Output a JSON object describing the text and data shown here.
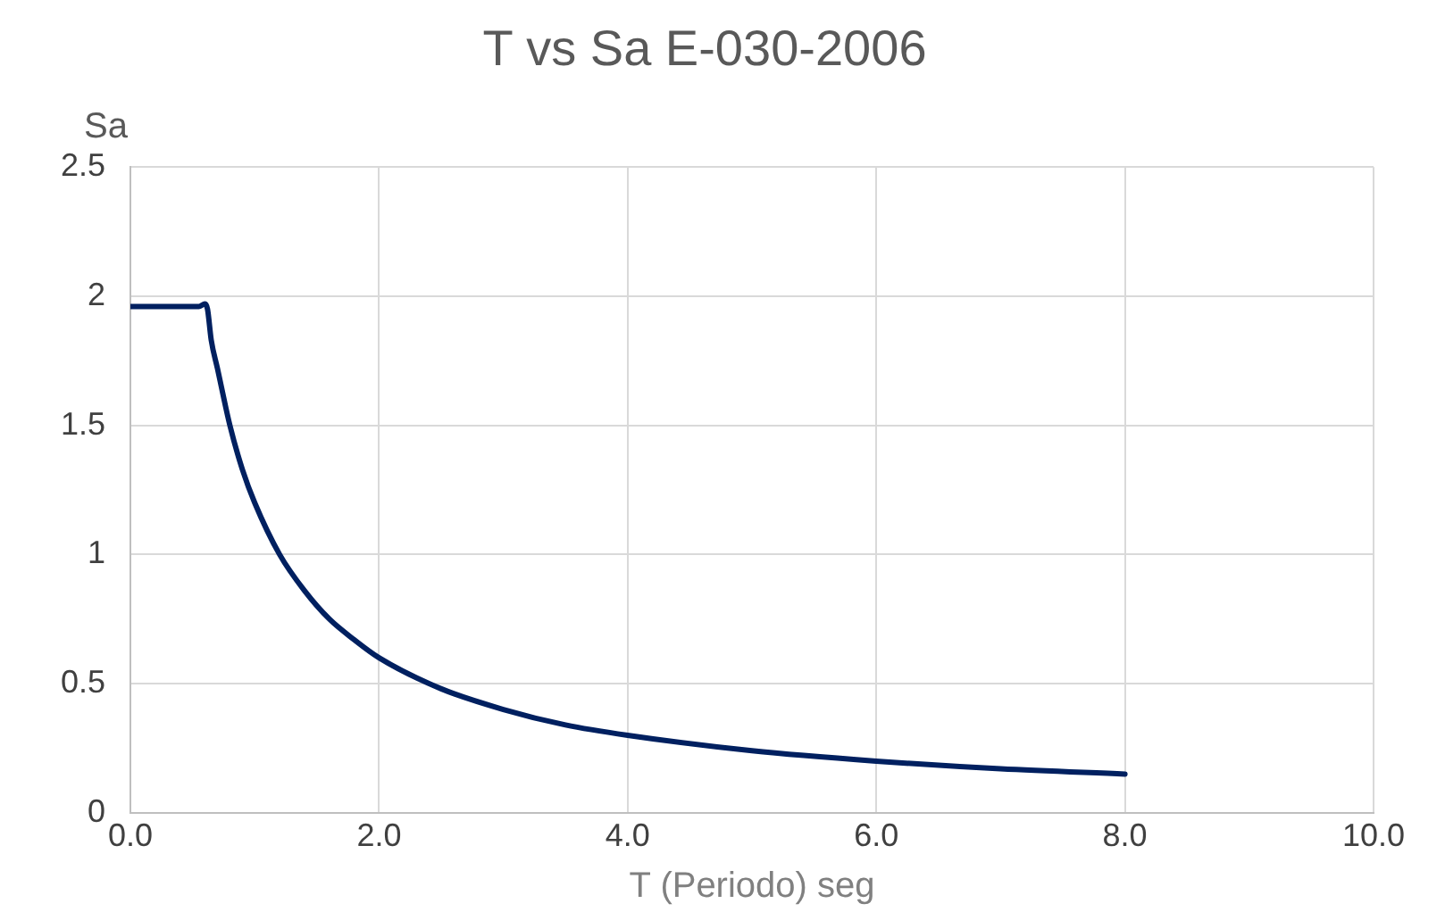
{
  "chart_data": {
    "type": "line",
    "title": "T vs Sa E-030-2006",
    "xlabel": "T (Periodo) seg",
    "ylabel": "Sa",
    "xlim": [
      0,
      10
    ],
    "xticks": [
      {
        "value": 0,
        "label": "0.0"
      },
      {
        "value": 2,
        "label": "2.0"
      },
      {
        "value": 4,
        "label": "4.0"
      },
      {
        "value": 6,
        "label": "6.0"
      },
      {
        "value": 8,
        "label": "8.0"
      },
      {
        "value": 10,
        "label": "10.0"
      }
    ],
    "ylim": [
      0,
      2.5
    ],
    "yticks": [
      0,
      0.5,
      1,
      1.5,
      2,
      2.5
    ],
    "grid": true,
    "marker": "none",
    "line_style": "solid",
    "series": [
      {
        "color": "#002060",
        "x": [
          0,
          0.5,
          0.55,
          0.6,
          0.62,
          0.65,
          0.7,
          0.8,
          0.9,
          1.0,
          1.2,
          1.4,
          1.6,
          1.8,
          2.0,
          2.5,
          3.0,
          3.5,
          4.0,
          5.0,
          6.0,
          7.0,
          8.0
        ],
        "values": [
          1.96,
          1.96,
          1.96,
          1.97,
          1.95,
          1.83,
          1.72,
          1.5,
          1.33,
          1.2,
          1.0,
          0.86,
          0.75,
          0.67,
          0.6,
          0.48,
          0.4,
          0.34,
          0.3,
          0.24,
          0.2,
          0.17,
          0.15
        ]
      }
    ]
  }
}
